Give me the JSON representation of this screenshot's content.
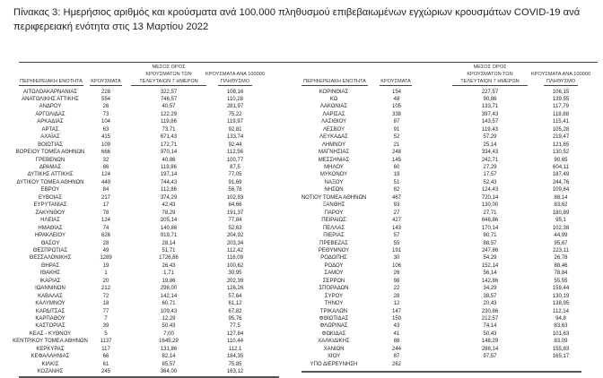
{
  "title": "Πίνακας 3: Ημερήσιος αριθμός και κρούσματα ανά 100.000 πληθυσμού επιβεβαιωμένων εγχώριων κρουσμάτων COVID-19 ανά περιφερειακή ενότητα στις 13 Μαρτίου 2022",
  "headers": {
    "region": "ΠΕΡΙΦΕΡΕΙΑΚΗ ΕΝΟΤΗΤΑ",
    "cases": "ΚΡΟΥΣΜΑΤΑ",
    "avg7_l1": "ΜΕΣΟΣ ΟΡΟΣ",
    "avg7_l2": "ΚΡΟΥΣΜΑΤΩΝ ΤΩΝ",
    "avg7_l3": "ΤΕΛΕΥΤΑΙΩΝ 7 ΗΜΕΡΩΝ",
    "per100k_l1": "ΚΡΟΥΣΜΑΤΑ ΑΝΑ 100000",
    "per100k_l2": "ΠΛΗΘΥΣΜΟ"
  },
  "left_rows": [
    [
      "ΑΙΤΩΛΟΑΚΑΡΝΑΝΙΑΣ",
      "228",
      "322,57",
      "108,16"
    ],
    [
      "ΑΝΑΤΟΛΙΚΗΣ ΑΤΤΙΚΗΣ",
      "554",
      "746,57",
      "110,28"
    ],
    [
      "ΑΝΔΡΟΥ",
      "26",
      "40,57",
      "281,97"
    ],
    [
      "ΑΡΓΟΛΙΔΑΣ",
      "73",
      "122,29",
      "75,22"
    ],
    [
      "ΑΡΚΑΔΙΑΣ",
      "104",
      "119,86",
      "119,97"
    ],
    [
      "ΑΡΤΑΣ",
      "63",
      "73,71",
      "92,81"
    ],
    [
      "ΑΧΑΪΑΣ",
      "415",
      "671,43",
      "133,74"
    ],
    [
      "ΒΟΙΩΤΙΑΣ",
      "109",
      "172,71",
      "92,44"
    ],
    [
      "ΒΟΡΕΙΟΥ ΤΟΜΕΑ ΑΘΗΝΩΝ",
      "666",
      "970,14",
      "112,56"
    ],
    [
      "ΓΡΕΒΕΝΩΝ",
      "32",
      "40,86",
      "100,77"
    ],
    [
      "ΔΡΑΜΑΣ",
      "86",
      "119,86",
      "87,5"
    ],
    [
      "ΔΥΤΙΚΗΣ ΑΤΤΙΚΗΣ",
      "124",
      "197,14",
      "77,05"
    ],
    [
      "ΔΥΤΙΚΟΥ ΤΟΜΕΑ ΑΘΗΝΩΝ",
      "449",
      "744,43",
      "91,69"
    ],
    [
      "ΕΒΡΟΥ",
      "84",
      "112,86",
      "56,78"
    ],
    [
      "ΕΥΒΟΙΑΣ",
      "217",
      "374,29",
      "102,93"
    ],
    [
      "ΕΥΡΥΤΑΝΙΑΣ",
      "17",
      "42,43",
      "84,66"
    ],
    [
      "ΖΑΚΥΝΘΟΥ",
      "78",
      "78,29",
      "191,37"
    ],
    [
      "ΗΛΕΙΑΣ",
      "124",
      "205,14",
      "77,84"
    ],
    [
      "ΗΜΑΘΙΑΣ",
      "74",
      "140,86",
      "52,63"
    ],
    [
      "ΗΡΑΚΛΕΙΟΥ",
      "626",
      "919,71",
      "204,92"
    ],
    [
      "ΘΑΣΟΥ",
      "28",
      "28,14",
      "203,34"
    ],
    [
      "ΘΕΣΠΡΩΤΙΑΣ",
      "49",
      "51,71",
      "112,42"
    ],
    [
      "ΘΕΣΣΑΛΟΝΙΚΗΣ",
      "1289",
      "1726,86",
      "116,09"
    ],
    [
      "ΘΗΡΑΣ",
      "19",
      "26,43",
      "100,62"
    ],
    [
      "ΙΘΑΚΗΣ",
      "1",
      "1,71",
      "30,95"
    ],
    [
      "ΙΚΑΡΙΑΣ",
      "20",
      "19,86",
      "202,39"
    ],
    [
      "ΙΩΑΝΝΙΝΩΝ",
      "212",
      "298,00",
      "126,26"
    ],
    [
      "ΚΑΒΑΛΑΣ",
      "72",
      "142,14",
      "57,64"
    ],
    [
      "ΚΑΛΥΜΝΟΥ",
      "18",
      "60,71",
      "61,12"
    ],
    [
      "ΚΑΡΔΙΤΣΑΣ",
      "77",
      "109,43",
      "67,82"
    ],
    [
      "ΚΑΡΠΑΘΟΥ",
      "7",
      "12,29",
      "95,76"
    ],
    [
      "ΚΑΣΤΟΡΙΑΣ",
      "39",
      "50,43",
      "77,5"
    ],
    [
      "ΚΕΑΣ - ΚΥΘΝΟΥ",
      "5",
      "7,00",
      "127,84"
    ],
    [
      "ΚΕΝΤΡΙΚΟΥ ΤΟΜΕΑ ΑΘΗΝΩΝ",
      "1137",
      "1645,29",
      "110,44"
    ],
    [
      "ΚΕΡΚΥΡΑΣ",
      "117",
      "131,86",
      "112,1"
    ],
    [
      "ΚΕΦΑΛΛΗΝΙΑΣ",
      "66",
      "82,14",
      "184,35"
    ],
    [
      "ΚΙΛΚΙΣ",
      "61",
      "85,57",
      "75,85"
    ],
    [
      "ΚΟΖΑΝΗΣ",
      "245",
      "364,00",
      "163,12"
    ]
  ],
  "right_rows": [
    [
      "ΚΟΡΙΝΘΙΑΣ",
      "154",
      "227,57",
      "106,15"
    ],
    [
      "ΚΩ",
      "48",
      "90,86",
      "139,55"
    ],
    [
      "ΛΑΚΩΝΙΑΣ",
      "105",
      "133,71",
      "117,79"
    ],
    [
      "ΛΑΡΙΣΑΣ",
      "338",
      "397,43",
      "118,88"
    ],
    [
      "ΛΑΣΙΘΙΟΥ",
      "87",
      "143,57",
      "115,41"
    ],
    [
      "ΛΕΣΒΟΥ",
      "91",
      "119,43",
      "105,28"
    ],
    [
      "ΛΕΥΚΑΔΑΣ",
      "52",
      "57,29",
      "219,47"
    ],
    [
      "ΛΗΜΝΟΥ",
      "21",
      "25,14",
      "121,65"
    ],
    [
      "ΜΑΓΝΗΣΙΑΣ",
      "248",
      "334,43",
      "130,52"
    ],
    [
      "ΜΕΣΣΗΝΙΑΣ",
      "145",
      "242,71",
      "90,65"
    ],
    [
      "ΜΗΛΟΥ",
      "60",
      "27,29",
      "604,11"
    ],
    [
      "ΜΥΚΟΝΟΥ",
      "19",
      "17,57",
      "187,49"
    ],
    [
      "ΝΑΞΟΥ",
      "51",
      "52,43",
      "244,76"
    ],
    [
      "ΝΗΣΩΝ",
      "82",
      "124,43",
      "109,84"
    ],
    [
      "ΝΟΤΙΟΥ ΤΟΜΕΑ ΑΘΗΝΩΝ",
      "467",
      "720,14",
      "88,14"
    ],
    [
      "ΞΑΝΘΗΣ",
      "93",
      "130,00",
      "83,62"
    ],
    [
      "ΠΑΡΟΥ",
      "27",
      "27,71",
      "180,89"
    ],
    [
      "ΠΕΙΡΑΙΩΣ",
      "427",
      "648,86",
      "95,1"
    ],
    [
      "ΠΕΛΛΑΣ",
      "143",
      "170,14",
      "102,38"
    ],
    [
      "ΠΙΕΡΙΑΣ",
      "57",
      "80,71",
      "44,99"
    ],
    [
      "ΠΡΕΒΕΖΑΣ",
      "55",
      "88,57",
      "95,67"
    ],
    [
      "ΡΕΘΥΜΝΟΥ",
      "191",
      "247,86",
      "223,11"
    ],
    [
      "ΡΟΔΟΠΗΣ",
      "30",
      "54,29",
      "26,78"
    ],
    [
      "ΡΟΔΟΥ",
      "106",
      "152,14",
      "88,46"
    ],
    [
      "ΣΑΜΟΥ",
      "26",
      "56,14",
      "78,84"
    ],
    [
      "ΣΕΡΡΩΝ",
      "98",
      "142,86",
      "55,55"
    ],
    [
      "ΣΠΟΡΑΔΩΝ",
      "22",
      "34,29",
      "159,44"
    ],
    [
      "ΣΥΡΟΥ",
      "28",
      "38,57",
      "130,19"
    ],
    [
      "ΤΗΝΟΥ",
      "12",
      "20,43",
      "138,95"
    ],
    [
      "ΤΡΙΚΑΛΩΝ",
      "147",
      "230,86",
      "112,14"
    ],
    [
      "ΦΘΙΩΤΙΔΑΣ",
      "150",
      "212,57",
      "94,8"
    ],
    [
      "ΦΛΩΡΙΝΑΣ",
      "43",
      "74,14",
      "83,63"
    ],
    [
      "ΦΩΚΙΔΑΣ",
      "41",
      "50,43",
      "101,63"
    ],
    [
      "ΧΑΛΚΙΔΙΚΗΣ",
      "88",
      "148,29",
      "83,09"
    ],
    [
      "ΧΑΝΙΩΝ",
      "244",
      "288,14",
      "155,83"
    ],
    [
      "ΧΙΟΥ",
      "87",
      "97,57",
      "165,17"
    ],
    [
      "ΥΠΟ ΔΙΕΡΕΥΝΗΣΗ",
      "262",
      "",
      ""
    ]
  ]
}
